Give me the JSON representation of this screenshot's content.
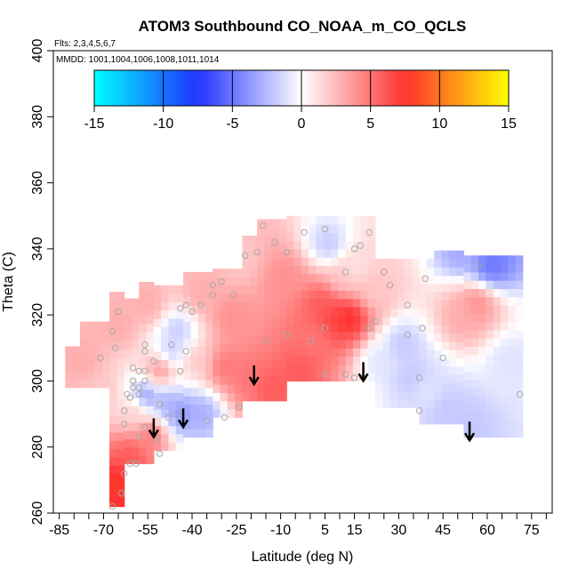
{
  "chart_data": {
    "type": "heatmap",
    "title": "ATOM3 Southbound CO_NOAA_m_CO_QCLS",
    "flights_label": "Flts: 2,3,4,5,6,7",
    "mmdd_label": "MMDD: 1001,1004,1006,1008,1011,1014",
    "xlabel": "Latitude (deg N)",
    "ylabel": "Theta (C)",
    "xlim": [
      -87,
      82
    ],
    "ylim": [
      260,
      400
    ],
    "x_ticks": [
      -85,
      -70,
      -55,
      -40,
      -25,
      -10,
      5,
      15,
      30,
      45,
      60,
      75
    ],
    "x_minor_ticks": [
      -80,
      -75,
      -65,
      -60,
      -50,
      -45,
      -35,
      -30,
      -20,
      -15,
      -5,
      0,
      10,
      20,
      25,
      35,
      40,
      50,
      55,
      65,
      70,
      80
    ],
    "y_ticks": [
      260,
      280,
      300,
      320,
      340,
      360,
      380,
      400
    ],
    "colorbar": {
      "range": [
        -15,
        15
      ],
      "ticks": [
        -15,
        -10,
        -5,
        0,
        5,
        10,
        15
      ],
      "colors": [
        "#00ffff",
        "#2030ff",
        "#ffffff",
        "#ff3030",
        "#ffff00"
      ]
    },
    "field_cells": [
      {
        "lat": -62,
        "theta": 276,
        "value": 6
      },
      {
        "lat": -66,
        "theta": 268,
        "value": 8
      },
      {
        "lat": -60,
        "theta": 290,
        "value": 2
      },
      {
        "lat": -55,
        "theta": 283,
        "value": 5
      },
      {
        "lat": -57,
        "theta": 294,
        "value": -4
      },
      {
        "lat": -50,
        "theta": 292,
        "value": -3
      },
      {
        "lat": -45,
        "theta": 289,
        "value": -4
      },
      {
        "lat": -38,
        "theta": 289,
        "value": -3
      },
      {
        "lat": -52,
        "theta": 302,
        "value": 4
      },
      {
        "lat": -48,
        "theta": 308,
        "value": -2
      },
      {
        "lat": -46,
        "theta": 314,
        "value": -2
      },
      {
        "lat": -40,
        "theta": 305,
        "value": 2
      },
      {
        "lat": -30,
        "theta": 303,
        "value": 5
      },
      {
        "lat": -28,
        "theta": 318,
        "value": 4
      },
      {
        "lat": -22,
        "theta": 300,
        "value": 5
      },
      {
        "lat": -15,
        "theta": 297,
        "value": 6
      },
      {
        "lat": -10,
        "theta": 330,
        "value": 4
      },
      {
        "lat": -5,
        "theta": 302,
        "value": 6
      },
      {
        "lat": 0,
        "theta": 312,
        "value": 5
      },
      {
        "lat": 3,
        "theta": 322,
        "value": 6
      },
      {
        "lat": 7,
        "theta": 318,
        "value": 7
      },
      {
        "lat": 12,
        "theta": 318,
        "value": 8
      },
      {
        "lat": 10,
        "theta": 330,
        "value": 2
      },
      {
        "lat": 5,
        "theta": 340,
        "value": -2
      },
      {
        "lat": 14,
        "theta": 333,
        "value": 1
      },
      {
        "lat": 20,
        "theta": 326,
        "value": 2
      },
      {
        "lat": 22,
        "theta": 305,
        "value": -1
      },
      {
        "lat": 30,
        "theta": 310,
        "value": -2
      },
      {
        "lat": 33,
        "theta": 300,
        "value": -2
      },
      {
        "lat": 38,
        "theta": 296,
        "value": -1
      },
      {
        "lat": 45,
        "theta": 290,
        "value": -2
      },
      {
        "lat": 52,
        "theta": 285,
        "value": -2
      },
      {
        "lat": 50,
        "theta": 318,
        "value": 3
      },
      {
        "lat": 55,
        "theta": 322,
        "value": 4
      },
      {
        "lat": 60,
        "theta": 334,
        "value": -5
      },
      {
        "lat": 50,
        "theta": 338,
        "value": -3
      },
      {
        "lat": 66,
        "theta": 305,
        "value": -1
      },
      {
        "lat": -78,
        "theta": 305,
        "value": 3
      },
      {
        "lat": -72,
        "theta": 296,
        "value": 2
      },
      {
        "lat": -66,
        "theta": 316,
        "value": 3
      },
      {
        "lat": -56,
        "theta": 322,
        "value": 3
      },
      {
        "lat": -38,
        "theta": 325,
        "value": 3
      },
      {
        "lat": -25,
        "theta": 335,
        "value": 2
      }
    ],
    "markers": [
      {
        "lat": -67,
        "theta": 262
      },
      {
        "lat": -64,
        "theta": 266
      },
      {
        "lat": -63,
        "theta": 272
      },
      {
        "lat": -61,
        "theta": 275
      },
      {
        "lat": -59,
        "theta": 275
      },
      {
        "lat": -58,
        "theta": 283
      },
      {
        "lat": -56,
        "theta": 286
      },
      {
        "lat": -52,
        "theta": 282
      },
      {
        "lat": -51,
        "theta": 278
      },
      {
        "lat": -63,
        "theta": 287
      },
      {
        "lat": -63,
        "theta": 291
      },
      {
        "lat": -61,
        "theta": 295
      },
      {
        "lat": -60,
        "theta": 298
      },
      {
        "lat": -58,
        "theta": 296
      },
      {
        "lat": -60,
        "theta": 300
      },
      {
        "lat": -58,
        "theta": 303
      },
      {
        "lat": -56,
        "theta": 300
      },
      {
        "lat": -56,
        "theta": 309
      },
      {
        "lat": -53,
        "theta": 306
      },
      {
        "lat": -56,
        "theta": 311
      },
      {
        "lat": -56,
        "theta": 303
      },
      {
        "lat": -58,
        "theta": 298
      },
      {
        "lat": -62,
        "theta": 296
      },
      {
        "lat": -60,
        "theta": 304
      },
      {
        "lat": -51,
        "theta": 293
      },
      {
        "lat": -48,
        "theta": 289
      },
      {
        "lat": -45,
        "theta": 290
      },
      {
        "lat": -44,
        "theta": 303
      },
      {
        "lat": -47,
        "theta": 311
      },
      {
        "lat": -42,
        "theta": 309
      },
      {
        "lat": -40,
        "theta": 321
      },
      {
        "lat": -42,
        "theta": 323
      },
      {
        "lat": -44,
        "theta": 322
      },
      {
        "lat": -37,
        "theta": 323
      },
      {
        "lat": -33,
        "theta": 326
      },
      {
        "lat": -33,
        "theta": 329
      },
      {
        "lat": -30,
        "theta": 330
      },
      {
        "lat": -26,
        "theta": 326
      },
      {
        "lat": -22,
        "theta": 338
      },
      {
        "lat": -18,
        "theta": 339
      },
      {
        "lat": -16,
        "theta": 347
      },
      {
        "lat": -12,
        "theta": 342
      },
      {
        "lat": -8,
        "theta": 339
      },
      {
        "lat": -2,
        "theta": 345
      },
      {
        "lat": 5,
        "theta": 346
      },
      {
        "lat": 12,
        "theta": 333
      },
      {
        "lat": 15,
        "theta": 340
      },
      {
        "lat": 17,
        "theta": 341
      },
      {
        "lat": 20,
        "theta": 345
      },
      {
        "lat": 25,
        "theta": 333
      },
      {
        "lat": 27,
        "theta": 329
      },
      {
        "lat": 33,
        "theta": 323
      },
      {
        "lat": 39,
        "theta": 331
      },
      {
        "lat": 38,
        "theta": 316
      },
      {
        "lat": 33,
        "theta": 314
      },
      {
        "lat": 22,
        "theta": 318
      },
      {
        "lat": 20,
        "theta": 316
      },
      {
        "lat": 5,
        "theta": 316
      },
      {
        "lat": 0,
        "theta": 312
      },
      {
        "lat": -8,
        "theta": 314
      },
      {
        "lat": -15,
        "theta": 312
      },
      {
        "lat": 5,
        "theta": 302
      },
      {
        "lat": 12,
        "theta": 302
      },
      {
        "lat": 15,
        "theta": 301
      },
      {
        "lat": 18,
        "theta": 301
      },
      {
        "lat": 37,
        "theta": 301
      },
      {
        "lat": 45,
        "theta": 307
      },
      {
        "lat": 37,
        "theta": 291
      },
      {
        "lat": 54,
        "theta": 283
      },
      {
        "lat": 57,
        "theta": 335
      },
      {
        "lat": 71,
        "theta": 296
      },
      {
        "lat": -24,
        "theta": 292
      },
      {
        "lat": -29,
        "theta": 289
      },
      {
        "lat": -35,
        "theta": 288
      },
      {
        "lat": -66,
        "theta": 310
      },
      {
        "lat": -67,
        "theta": 315
      },
      {
        "lat": -65,
        "theta": 321
      },
      {
        "lat": -71,
        "theta": 307
      }
    ],
    "arrows": [
      {
        "lat": -53,
        "theta": 286
      },
      {
        "lat": -43,
        "theta": 289
      },
      {
        "lat": -19,
        "theta": 302
      },
      {
        "lat": 18,
        "theta": 303
      },
      {
        "lat": 54,
        "theta": 285
      }
    ]
  }
}
